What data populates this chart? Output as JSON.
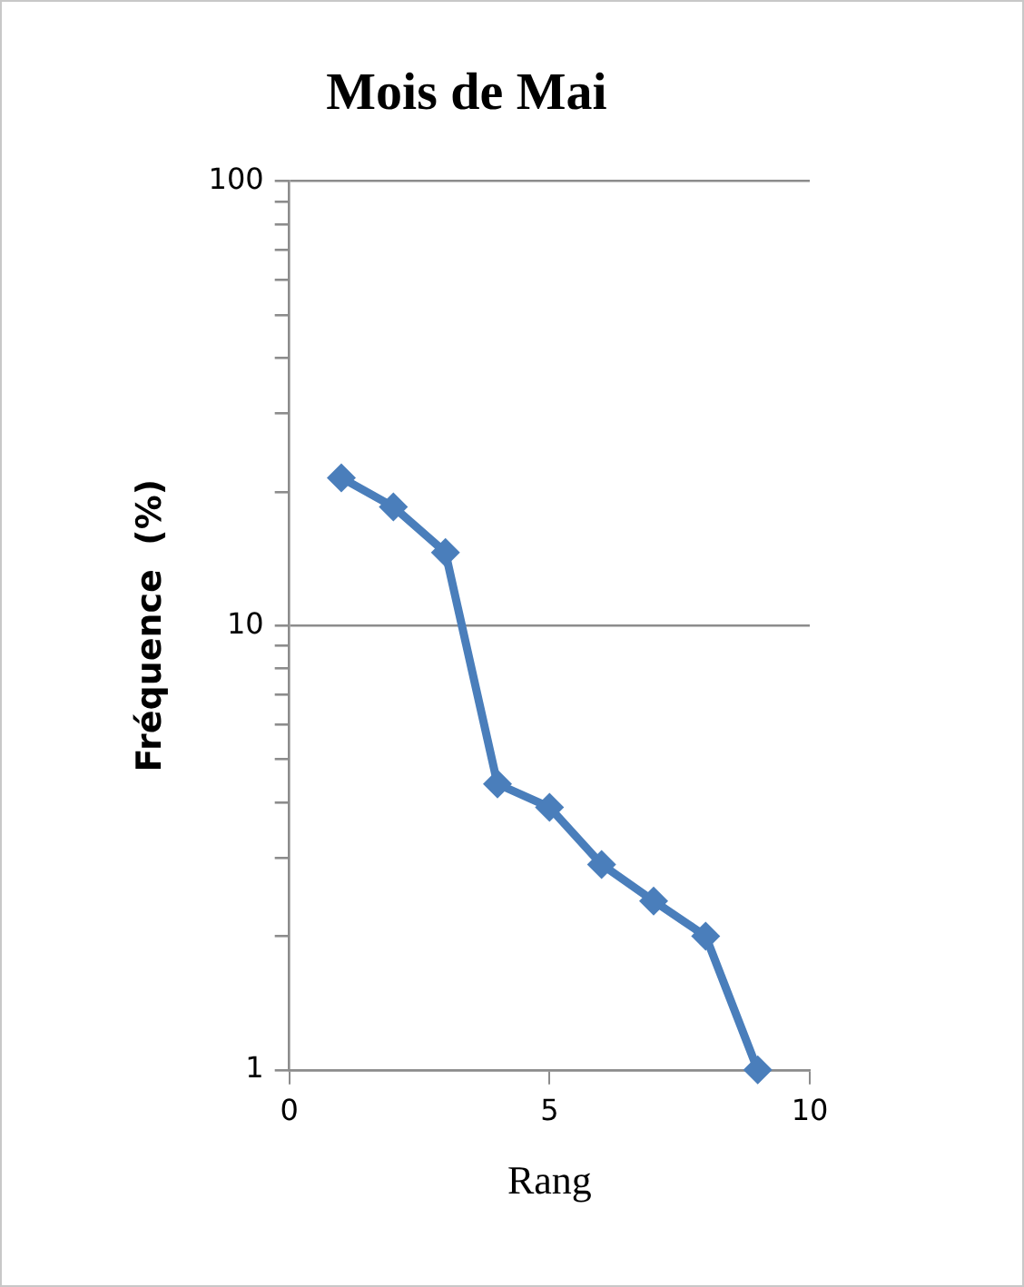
{
  "chart_data": {
    "type": "line",
    "title": "Mois de Mai",
    "xlabel": "Rang",
    "ylabel": "Fréquence  (%)",
    "x": [
      1,
      2,
      3,
      4,
      5,
      6,
      7,
      8,
      9
    ],
    "series": [
      {
        "color": "#4a7ebb",
        "values": [
          21.5,
          18.5,
          14.6,
          4.4,
          3.9,
          2.9,
          2.4,
          2.0,
          1.0
        ]
      }
    ],
    "xlim": [
      0,
      10
    ],
    "xticks": [
      0,
      5,
      10
    ],
    "ylim": [
      1,
      100
    ],
    "yticks": [
      1,
      {
        "value": 2,
        "label": null
      },
      {
        "value": 3,
        "label": null
      },
      {
        "value": 4,
        "label": null
      },
      {
        "value": 5,
        "label": null
      },
      {
        "value": 6,
        "label": null
      },
      {
        "value": 7,
        "label": null
      },
      {
        "value": 8,
        "label": null
      },
      {
        "value": 9,
        "label": null
      },
      10,
      {
        "value": 20,
        "label": null
      },
      {
        "value": 30,
        "label": null
      },
      {
        "value": 40,
        "label": null
      },
      {
        "value": 50,
        "label": null
      },
      {
        "value": 60,
        "label": null
      },
      {
        "value": 70,
        "label": null
      },
      {
        "value": 80,
        "label": null
      },
      {
        "value": 90,
        "label": null
      },
      100
    ],
    "log": "y",
    "grid": "y",
    "marker": "diamond",
    "line_style": "solid"
  }
}
